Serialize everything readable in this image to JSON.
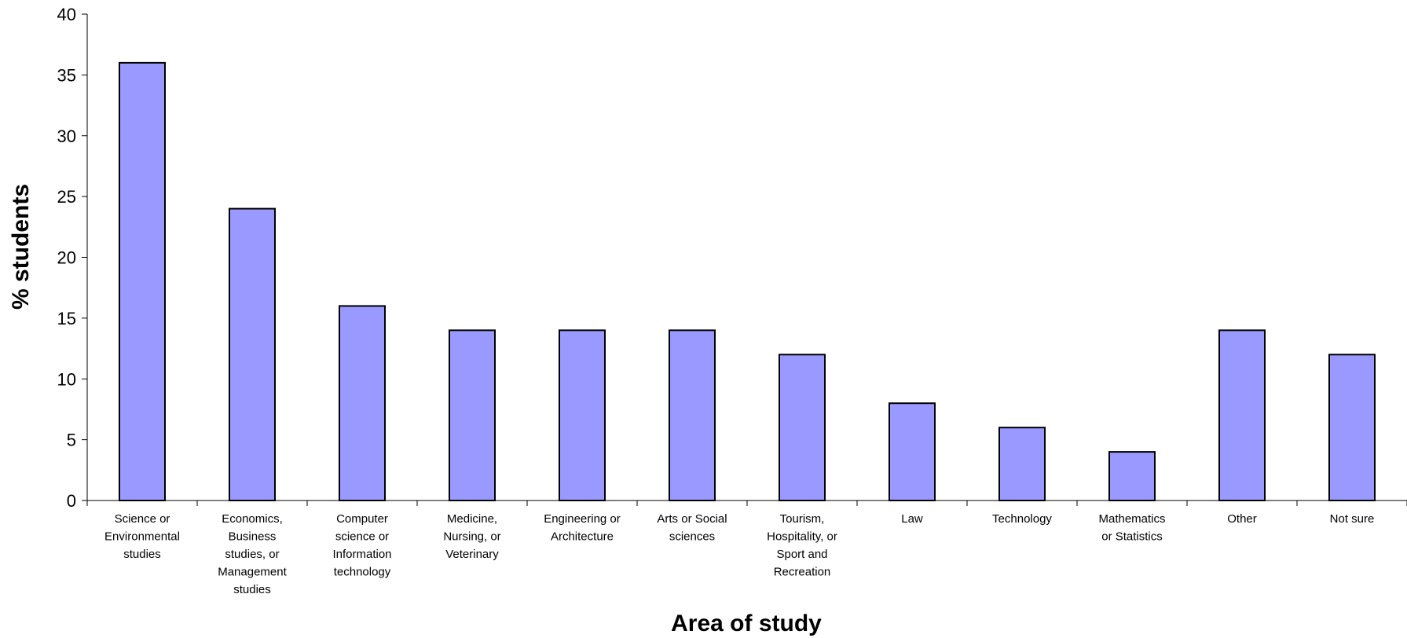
{
  "chart_data": {
    "type": "bar",
    "title": "",
    "xlabel": "Area of study",
    "ylabel": "% students",
    "ylim": [
      0,
      40
    ],
    "yticks": [
      0,
      5,
      10,
      15,
      20,
      25,
      30,
      35,
      40
    ],
    "grid": false,
    "legend": "none",
    "bar_color": "#9999ff",
    "bar_edge_color": "#000000",
    "categories": [
      "Science or Environmental studies",
      "Economics, Business studies, or Management studies",
      "Computer science or Information technology",
      "Medicine, Nursing, or Veterinary",
      "Engineering or Architecture",
      "Arts or Social sciences",
      "Tourism, Hospitality, or Sport and Recreation",
      "Law",
      "Technology",
      "Mathematics or Statistics",
      "Other",
      "Not sure"
    ],
    "category_label_lines": [
      [
        "Science or",
        "Environmental",
        "studies"
      ],
      [
        "Economics,",
        "Business",
        "studies, or",
        "Management",
        "studies"
      ],
      [
        "Computer",
        "science or",
        "Information",
        "technology"
      ],
      [
        "Medicine,",
        "Nursing, or",
        "Veterinary"
      ],
      [
        "Engineering or",
        "Architecture"
      ],
      [
        "Arts or Social",
        "sciences"
      ],
      [
        "Tourism,",
        "Hospitality, or",
        "Sport and",
        "Recreation"
      ],
      [
        "Law"
      ],
      [
        "Technology"
      ],
      [
        "Mathematics",
        "or Statistics"
      ],
      [
        "Other"
      ],
      [
        "Not sure"
      ]
    ],
    "values": [
      36,
      24,
      16,
      14,
      14,
      14,
      12,
      8,
      6,
      4,
      14,
      12
    ]
  }
}
